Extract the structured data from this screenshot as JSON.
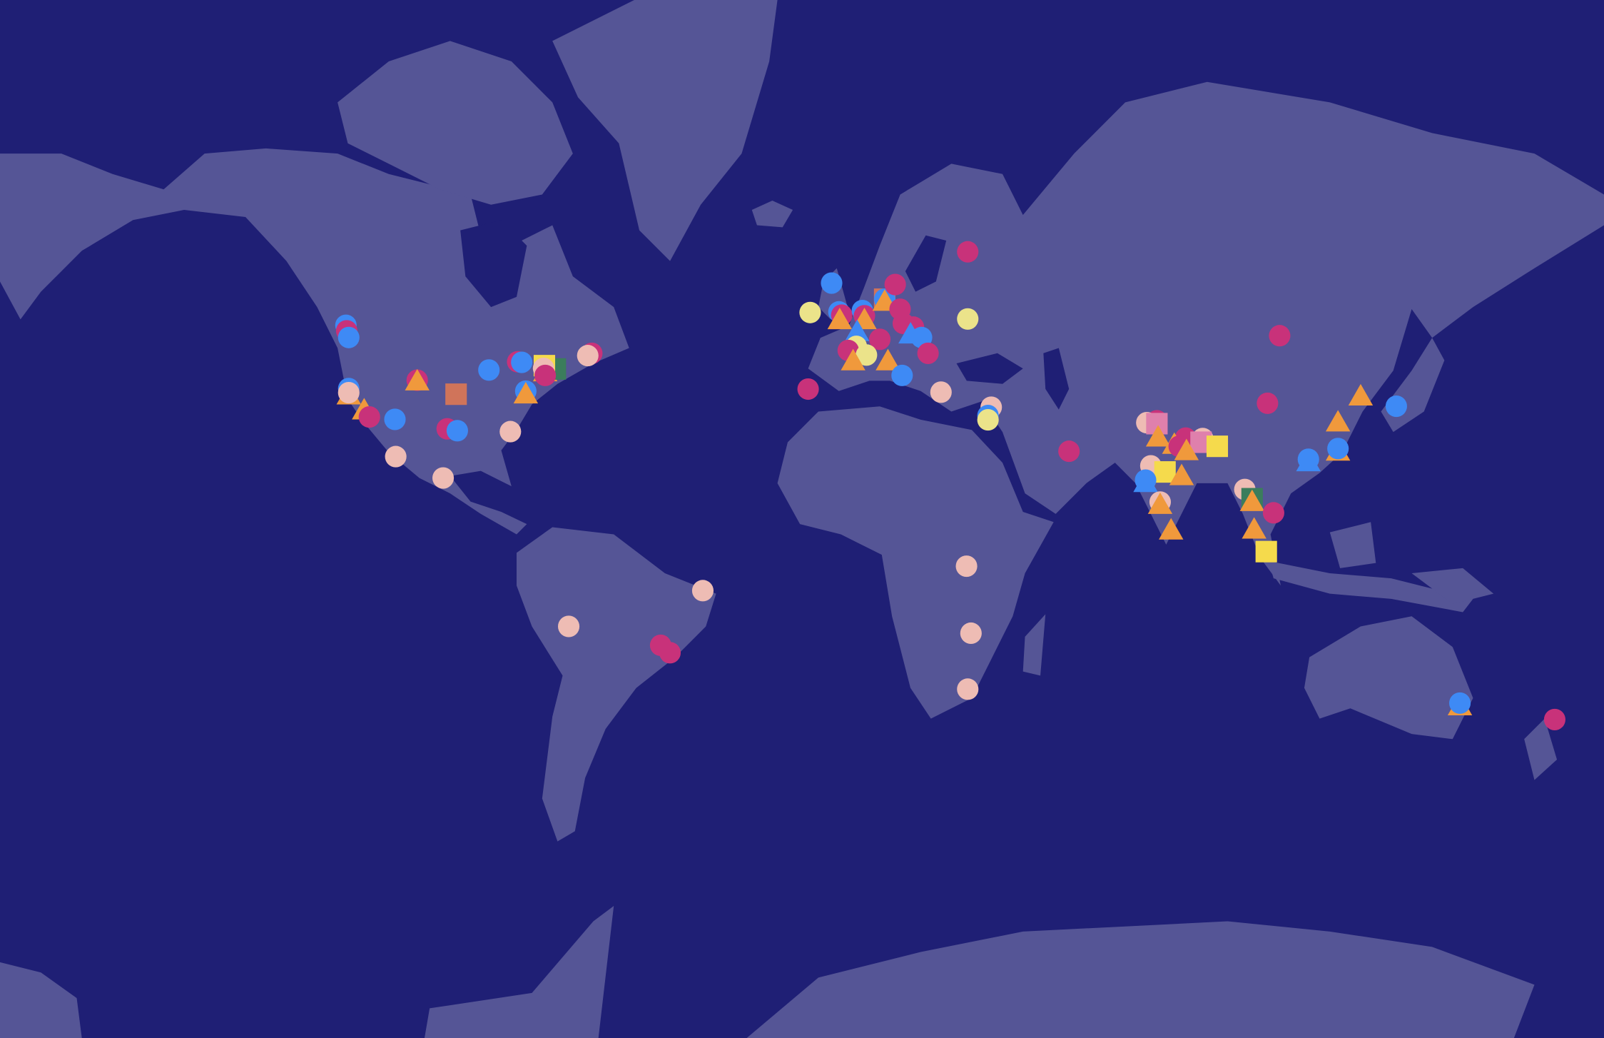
{
  "map": {
    "projection": "mercator",
    "colors": {
      "ocean": "#1f1f75",
      "land": "#555596",
      "pink": "#c8327a",
      "blue": "#3e8af5",
      "peach": "#eebcb4",
      "paleyellow": "#ebe38a",
      "orange": "#f0993c",
      "yellow": "#f5da4c",
      "green": "#3b7d5c",
      "brown": "#d0745a",
      "lightpink": "#df80ac"
    },
    "markers": [
      {
        "lon": -123.7,
        "lat": 49.5,
        "shape": "circle",
        "color": "blue"
      },
      {
        "lon": -123.5,
        "lat": 48.6,
        "shape": "circle",
        "color": "pink"
      },
      {
        "lon": -123.0,
        "lat": 47.5,
        "shape": "circle",
        "color": "blue"
      },
      {
        "lon": -123.0,
        "lat": 37.2,
        "shape": "triangle",
        "color": "orange"
      },
      {
        "lon": -123.0,
        "lat": 38.3,
        "shape": "circle",
        "color": "blue"
      },
      {
        "lon": -123.0,
        "lat": 37.5,
        "shape": "circle",
        "color": "peach"
      },
      {
        "lon": -119.2,
        "lat": 34.2,
        "shape": "triangle",
        "color": "orange"
      },
      {
        "lon": -117.9,
        "lat": 32.6,
        "shape": "circle",
        "color": "pink"
      },
      {
        "lon": -106.1,
        "lat": 39.9,
        "shape": "circle",
        "color": "pink"
      },
      {
        "lon": -106.1,
        "lat": 39.9,
        "shape": "triangle",
        "color": "orange"
      },
      {
        "lon": -111.6,
        "lat": 32.1,
        "shape": "circle",
        "color": "blue"
      },
      {
        "lon": -96.5,
        "lat": 37.2,
        "shape": "square",
        "color": "brown"
      },
      {
        "lon": -98.7,
        "lat": 30.1,
        "shape": "circle",
        "color": "pink"
      },
      {
        "lon": -96.2,
        "lat": 29.7,
        "shape": "circle",
        "color": "blue"
      },
      {
        "lon": -111.4,
        "lat": 24.0,
        "shape": "circle",
        "color": "peach"
      },
      {
        "lon": -99.7,
        "lat": 19.1,
        "shape": "circle",
        "color": "peach"
      },
      {
        "lon": -88.4,
        "lat": 41.8,
        "shape": "circle",
        "color": "blue"
      },
      {
        "lon": -81.3,
        "lat": 43.3,
        "shape": "circle",
        "color": "pink"
      },
      {
        "lon": -80.3,
        "lat": 43.2,
        "shape": "circle",
        "color": "blue"
      },
      {
        "lon": -79.3,
        "lat": 37.8,
        "shape": "circle",
        "color": "blue"
      },
      {
        "lon": -79.3,
        "lat": 37.4,
        "shape": "triangle",
        "color": "orange"
      },
      {
        "lon": -74.5,
        "lat": 41.6,
        "shape": "triangle",
        "color": "orange"
      },
      {
        "lon": -72.0,
        "lat": 42.0,
        "shape": "square",
        "color": "green"
      },
      {
        "lon": -74.7,
        "lat": 42.6,
        "shape": "square",
        "color": "yellow"
      },
      {
        "lon": -74.9,
        "lat": 42.1,
        "shape": "circle",
        "color": "peach"
      },
      {
        "lon": -74.5,
        "lat": 40.8,
        "shape": "circle",
        "color": "pink"
      },
      {
        "lon": -63.0,
        "lat": 44.8,
        "shape": "circle",
        "color": "pink"
      },
      {
        "lon": -64.0,
        "lat": 44.4,
        "shape": "circle",
        "color": "peach"
      },
      {
        "lon": -83.1,
        "lat": 29.5,
        "shape": "circle",
        "color": "peach"
      },
      {
        "lon": -68.7,
        "lat": -16.9,
        "shape": "circle",
        "color": "peach"
      },
      {
        "lon": -35.6,
        "lat": -8.3,
        "shape": "circle",
        "color": "peach"
      },
      {
        "lon": -46.0,
        "lat": -21.3,
        "shape": "circle",
        "color": "pink"
      },
      {
        "lon": -43.7,
        "lat": -23.0,
        "shape": "circle",
        "color": "pink"
      },
      {
        "lon": -3.8,
        "lat": 55.8,
        "shape": "circle",
        "color": "blue"
      },
      {
        "lon": -9.1,
        "lat": 51.5,
        "shape": "circle",
        "color": "paleyellow"
      },
      {
        "lon": -2.0,
        "lat": 51.6,
        "shape": "circle",
        "color": "blue"
      },
      {
        "lon": -1.3,
        "lat": 51.1,
        "shape": "circle",
        "color": "pink"
      },
      {
        "lon": -1.8,
        "lat": 50.5,
        "shape": "triangle",
        "color": "orange"
      },
      {
        "lon": 3.8,
        "lat": 51.8,
        "shape": "circle",
        "color": "blue"
      },
      {
        "lon": 4.3,
        "lat": 51.0,
        "shape": "circle",
        "color": "pink"
      },
      {
        "lon": 4.3,
        "lat": 50.5,
        "shape": "triangle",
        "color": "orange"
      },
      {
        "lon": 9.3,
        "lat": 53.5,
        "shape": "square",
        "color": "brown"
      },
      {
        "lon": 9.3,
        "lat": 53.5,
        "shape": "circle",
        "color": "blue"
      },
      {
        "lon": 9.3,
        "lat": 53.3,
        "shape": "triangle",
        "color": "orange"
      },
      {
        "lon": 11.9,
        "lat": 55.6,
        "shape": "circle",
        "color": "pink"
      },
      {
        "lon": 13.1,
        "lat": 52.0,
        "shape": "circle",
        "color": "pink"
      },
      {
        "lon": 13.9,
        "lat": 49.8,
        "shape": "circle",
        "color": "pink"
      },
      {
        "lon": 16.4,
        "lat": 49.2,
        "shape": "circle",
        "color": "pink"
      },
      {
        "lon": 2.5,
        "lat": 48.6,
        "shape": "triangle",
        "color": "blue"
      },
      {
        "lon": 2.3,
        "lat": 46.0,
        "shape": "circle",
        "color": "paleyellow"
      },
      {
        "lon": 8.1,
        "lat": 47.2,
        "shape": "circle",
        "color": "pink"
      },
      {
        "lon": 0.3,
        "lat": 45.3,
        "shape": "circle",
        "color": "pink"
      },
      {
        "lon": 4.8,
        "lat": 44.5,
        "shape": "circle",
        "color": "paleyellow"
      },
      {
        "lon": 1.5,
        "lat": 43.6,
        "shape": "triangle",
        "color": "orange"
      },
      {
        "lon": 10.1,
        "lat": 43.6,
        "shape": "triangle",
        "color": "orange"
      },
      {
        "lon": 15.7,
        "lat": 48.2,
        "shape": "triangle",
        "color": "blue"
      },
      {
        "lon": 18.4,
        "lat": 47.5,
        "shape": "circle",
        "color": "blue"
      },
      {
        "lon": 20.0,
        "lat": 44.8,
        "shape": "circle",
        "color": "pink"
      },
      {
        "lon": 13.6,
        "lat": 40.8,
        "shape": "circle",
        "color": "blue"
      },
      {
        "lon": -9.6,
        "lat": 38.2,
        "shape": "circle",
        "color": "pink"
      },
      {
        "lon": 29.8,
        "lat": 59.9,
        "shape": "circle",
        "color": "pink"
      },
      {
        "lon": 29.8,
        "lat": 50.5,
        "shape": "circle",
        "color": "paleyellow"
      },
      {
        "lon": 23.2,
        "lat": 37.6,
        "shape": "circle",
        "color": "peach"
      },
      {
        "lon": 35.6,
        "lat": 34.6,
        "shape": "circle",
        "color": "peach"
      },
      {
        "lon": 34.8,
        "lat": 32.9,
        "shape": "circle",
        "color": "blue"
      },
      {
        "lon": 34.8,
        "lat": 32.0,
        "shape": "circle",
        "color": "paleyellow"
      },
      {
        "lon": 54.8,
        "lat": 25.2,
        "shape": "circle",
        "color": "pink"
      },
      {
        "lon": 29.5,
        "lat": -2.3,
        "shape": "circle",
        "color": "peach"
      },
      {
        "lon": 30.6,
        "lat": -18.5,
        "shape": "circle",
        "color": "peach"
      },
      {
        "lon": 29.8,
        "lat": -31.0,
        "shape": "circle",
        "color": "peach"
      },
      {
        "lon": 106.8,
        "lat": 47.8,
        "shape": "circle",
        "color": "pink"
      },
      {
        "lon": 103.8,
        "lat": 35.4,
        "shape": "circle",
        "color": "pink"
      },
      {
        "lon": 126.8,
        "lat": 37.0,
        "shape": "triangle",
        "color": "orange"
      },
      {
        "lon": 135.6,
        "lat": 34.8,
        "shape": "circle",
        "color": "blue"
      },
      {
        "lon": 121.2,
        "lat": 31.7,
        "shape": "triangle",
        "color": "orange"
      },
      {
        "lon": 121.2,
        "lat": 25.4,
        "shape": "triangle",
        "color": "orange"
      },
      {
        "lon": 121.2,
        "lat": 25.8,
        "shape": "circle",
        "color": "blue"
      },
      {
        "lon": 113.9,
        "lat": 23.0,
        "shape": "triangle",
        "color": "blue"
      },
      {
        "lon": 113.9,
        "lat": 23.4,
        "shape": "circle",
        "color": "blue"
      },
      {
        "lon": 76.5,
        "lat": 31.8,
        "shape": "circle",
        "color": "pink"
      },
      {
        "lon": 74.0,
        "lat": 31.4,
        "shape": "circle",
        "color": "peach"
      },
      {
        "lon": 76.5,
        "lat": 31.2,
        "shape": "square",
        "color": "lightpink"
      },
      {
        "lon": 76.8,
        "lat": 28.5,
        "shape": "triangle",
        "color": "orange"
      },
      {
        "lon": 83.6,
        "lat": 28.1,
        "shape": "circle",
        "color": "pink"
      },
      {
        "lon": 80.8,
        "lat": 26.9,
        "shape": "triangle",
        "color": "orange"
      },
      {
        "lon": 82.0,
        "lat": 26.3,
        "shape": "circle",
        "color": "pink"
      },
      {
        "lon": 87.8,
        "lat": 28.0,
        "shape": "circle",
        "color": "peach"
      },
      {
        "lon": 87.4,
        "lat": 27.2,
        "shape": "square",
        "color": "lightpink"
      },
      {
        "lon": 83.8,
        "lat": 25.5,
        "shape": "triangle",
        "color": "orange"
      },
      {
        "lon": 91.4,
        "lat": 26.3,
        "shape": "square",
        "color": "yellow"
      },
      {
        "lon": 75.0,
        "lat": 21.9,
        "shape": "circle",
        "color": "peach"
      },
      {
        "lon": 78.5,
        "lat": 20.5,
        "shape": "square",
        "color": "yellow"
      },
      {
        "lon": 82.6,
        "lat": 19.8,
        "shape": "triangle",
        "color": "orange"
      },
      {
        "lon": 73.7,
        "lat": 18.2,
        "shape": "triangle",
        "color": "blue"
      },
      {
        "lon": 73.7,
        "lat": 18.6,
        "shape": "circle",
        "color": "blue"
      },
      {
        "lon": 77.3,
        "lat": 13.4,
        "shape": "circle",
        "color": "peach"
      },
      {
        "lon": 77.3,
        "lat": 13.0,
        "shape": "triangle",
        "color": "orange"
      },
      {
        "lon": 80.0,
        "lat": 6.8,
        "shape": "triangle",
        "color": "orange"
      },
      {
        "lon": 98.2,
        "lat": 16.4,
        "shape": "circle",
        "color": "peach"
      },
      {
        "lon": 100.0,
        "lat": 14.2,
        "shape": "square",
        "color": "green"
      },
      {
        "lon": 100.0,
        "lat": 13.7,
        "shape": "triangle",
        "color": "orange"
      },
      {
        "lon": 105.3,
        "lat": 10.8,
        "shape": "circle",
        "color": "pink"
      },
      {
        "lon": 100.5,
        "lat": 7.0,
        "shape": "triangle",
        "color": "orange"
      },
      {
        "lon": 103.5,
        "lat": 1.3,
        "shape": "square",
        "color": "yellow"
      },
      {
        "lon": 151.3,
        "lat": -34.3,
        "shape": "triangle",
        "color": "orange"
      },
      {
        "lon": 151.3,
        "lat": -33.9,
        "shape": "circle",
        "color": "blue"
      },
      {
        "lon": 174.7,
        "lat": -37.2,
        "shape": "circle",
        "color": "pink"
      }
    ]
  }
}
